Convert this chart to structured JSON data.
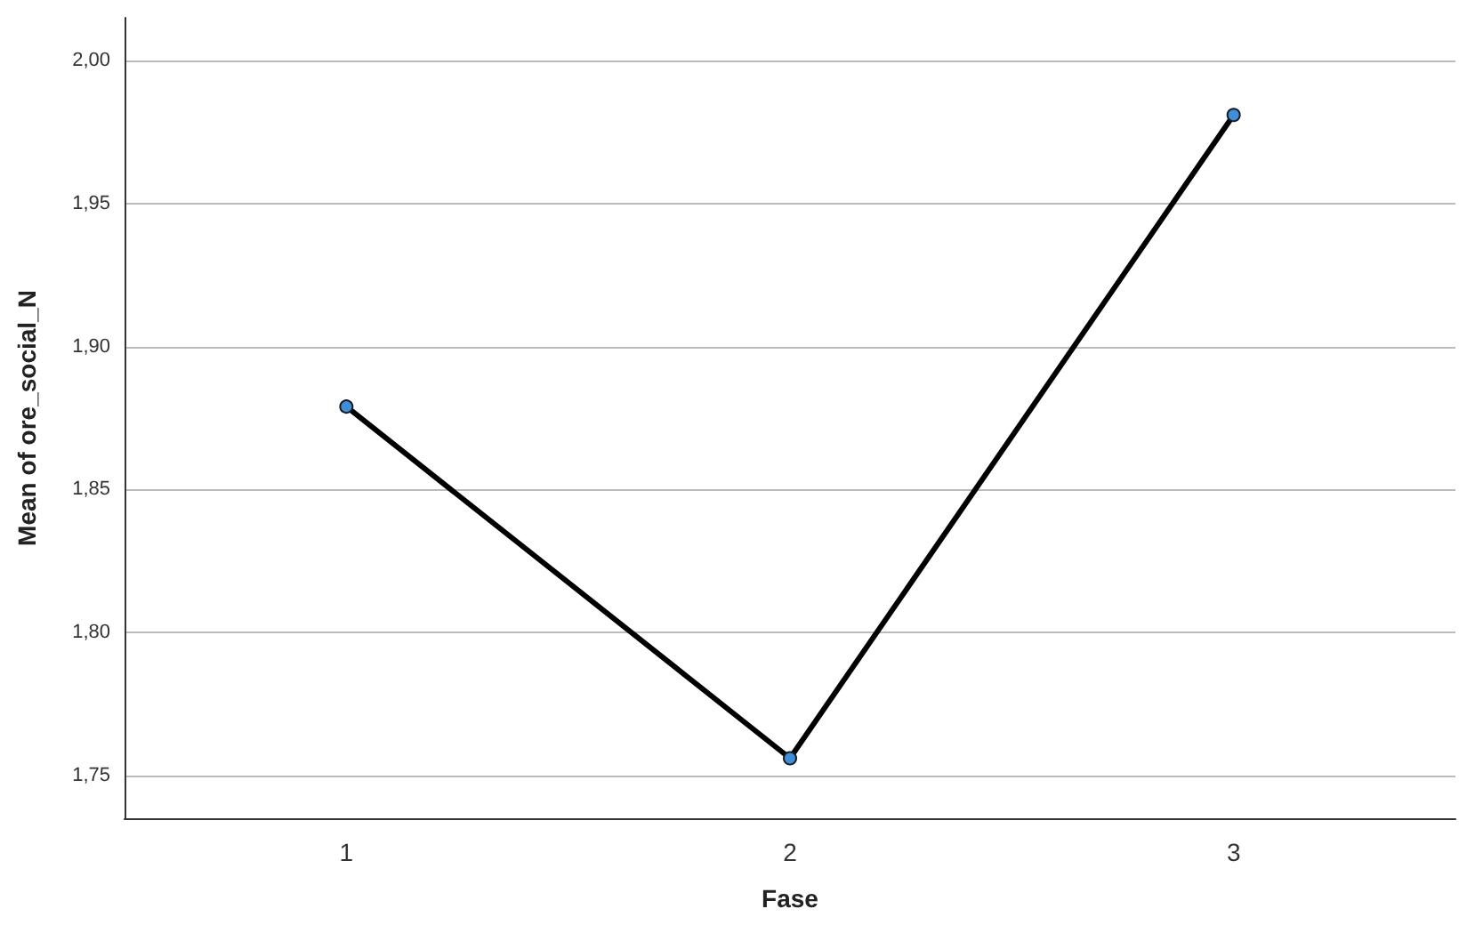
{
  "chart_data": {
    "type": "line",
    "xlabel": "Fase",
    "ylabel": "Mean of ore_social_N",
    "categories": [
      "1",
      "2",
      "3"
    ],
    "series": [
      {
        "color": "#000000",
        "values": [
          1.879,
          1.756,
          1.981
        ]
      }
    ],
    "ylim": [
      1.735,
      2.015
    ],
    "yticks": [
      {
        "value": 1.75,
        "label": "1,75"
      },
      {
        "value": 1.8,
        "label": "1,80"
      },
      {
        "value": 1.85,
        "label": "1,85"
      },
      {
        "value": 1.9,
        "label": "1,90"
      },
      {
        "value": 1.95,
        "label": "1,95"
      },
      {
        "value": 2.0,
        "label": "2,00"
      }
    ],
    "grid": "y",
    "marker": "circle",
    "line_style": "solid"
  }
}
